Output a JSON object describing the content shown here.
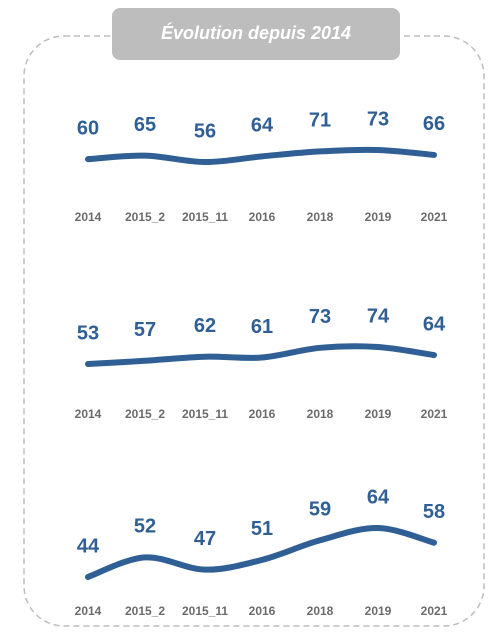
{
  "title": "Évolution depuis 2014",
  "chart_data": [
    {
      "type": "line",
      "categories": [
        "2014",
        "2015_2",
        "2015_11",
        "2016",
        "2018",
        "2019",
        "2021"
      ],
      "values": [
        60,
        65,
        56,
        64,
        71,
        73,
        66
      ],
      "color": "#2f5f95"
    },
    {
      "type": "line",
      "categories": [
        "2014",
        "2015_2",
        "2015_11",
        "2016",
        "2018",
        "2019",
        "2021"
      ],
      "values": [
        53,
        57,
        62,
        61,
        73,
        74,
        64
      ],
      "color": "#2f5f95"
    },
    {
      "type": "line",
      "categories": [
        "2014",
        "2015_2",
        "2015_11",
        "2016",
        "2018",
        "2019",
        "2021"
      ],
      "values": [
        44,
        52,
        47,
        51,
        59,
        64,
        58
      ],
      "color": "#2f5f95"
    }
  ]
}
